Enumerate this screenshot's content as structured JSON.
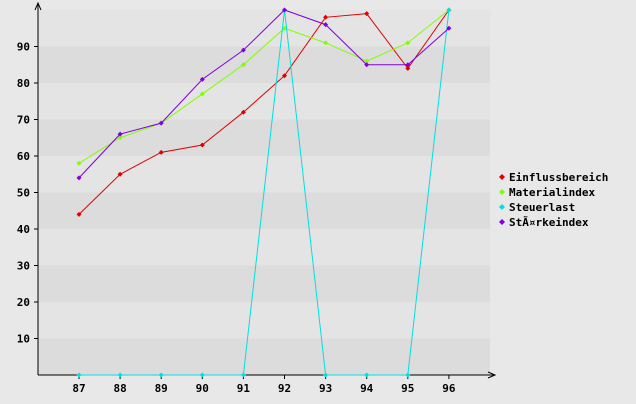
{
  "chart_data": {
    "type": "line",
    "title": "",
    "xlabel": "",
    "ylabel": "",
    "categories": [
      "87",
      "88",
      "89",
      "90",
      "91",
      "92",
      "93",
      "94",
      "95",
      "96"
    ],
    "ylim": [
      0,
      100
    ],
    "yticks": [
      10,
      20,
      30,
      40,
      50,
      60,
      70,
      80,
      90
    ],
    "grid": "horizontal alternating bands",
    "legend_position": "right",
    "series": [
      {
        "name": "Einflussbereich",
        "color": "#e00000",
        "values": [
          44,
          55,
          61,
          63,
          72,
          82,
          98,
          99,
          84,
          100
        ]
      },
      {
        "name": "Materialindex",
        "color": "#80ff00",
        "values": [
          58,
          65,
          69,
          77,
          85,
          95,
          91,
          86,
          91,
          100
        ]
      },
      {
        "name": "Steuerlast",
        "color": "#00e0e0",
        "values": [
          0,
          0,
          0,
          0,
          0,
          100,
          0,
          0,
          0,
          100
        ]
      },
      {
        "name": "StÃ¤rkeindex",
        "color": "#8000e0",
        "values": [
          54,
          66,
          69,
          81,
          89,
          100,
          96,
          85,
          85,
          95
        ]
      }
    ]
  }
}
